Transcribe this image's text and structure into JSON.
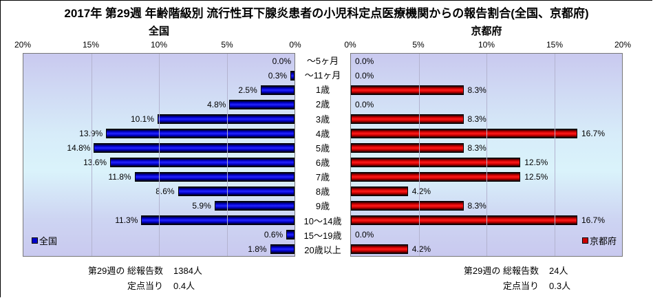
{
  "title": "2017年 第29週 年齢階級別 流行性耳下腺炎患者の小児科定点医療機関からの報告割合(全国、京都府)",
  "colors": {
    "national_bar": "#0000ee",
    "kyoto_bar": "#dd0000",
    "plot_background_top": "#c9c9ef",
    "plot_background_middle": "#daf3fb",
    "gridline": "#b3b3cf"
  },
  "chart_data": {
    "type": "bar",
    "orientation": "horizontal",
    "layout": "mirrored-dual-panel",
    "grid": "vertical-only",
    "categories": [
      "～5ヶ月",
      "～11ヶ月",
      "1歳",
      "2歳",
      "3歳",
      "4歳",
      "5歳",
      "6歳",
      "7歳",
      "8歳",
      "9歳",
      "10～14歳",
      "15～19歳",
      "20歳以上"
    ],
    "xlim": [
      0,
      20
    ],
    "tick_step_percent": 5,
    "left": {
      "subtitle": "全国",
      "legend": "全国",
      "axis_direction": "right-to-left",
      "ticks": [
        "20%",
        "15%",
        "10%",
        "5%",
        "0%"
      ],
      "values": [
        0.0,
        0.3,
        2.5,
        4.8,
        10.1,
        13.9,
        14.8,
        13.6,
        11.8,
        8.6,
        5.9,
        11.3,
        0.6,
        1.8
      ],
      "labels": [
        "0.0%",
        "0.3%",
        "2.5%",
        "4.8%",
        "10.1%",
        "13.9%",
        "14.8%",
        "13.6%",
        "11.8%",
        "8.6%",
        "5.9%",
        "11.3%",
        "0.6%",
        "1.8%"
      ],
      "footer": {
        "total_label": "第29週の 総報告数",
        "total_value": "1384人",
        "per_label": "定点当り",
        "per_value": "0.4人"
      }
    },
    "right": {
      "subtitle": "京都府",
      "legend": "京都府",
      "axis_direction": "left-to-right",
      "ticks": [
        "0%",
        "5%",
        "10%",
        "15%",
        "20%"
      ],
      "values": [
        0.0,
        0.0,
        8.3,
        0.0,
        8.3,
        16.7,
        8.3,
        12.5,
        12.5,
        4.2,
        8.3,
        16.7,
        0.0,
        4.2
      ],
      "labels": [
        "0.0%",
        "0.0%",
        "8.3%",
        "0.0%",
        "8.3%",
        "16.7%",
        "8.3%",
        "12.5%",
        "12.5%",
        "4.2%",
        "8.3%",
        "16.7%",
        "0.0%",
        "4.2%"
      ],
      "footer": {
        "total_label": "第29週の 総報告数",
        "total_value": "24人",
        "per_label": "定点当り",
        "per_value": "0.3人"
      }
    }
  }
}
